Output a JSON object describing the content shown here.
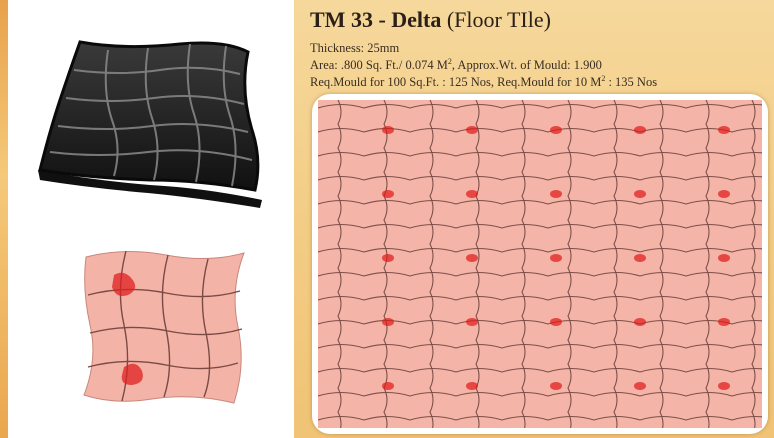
{
  "product": {
    "code": "TM 33 - Delta",
    "subtitle": "(Floor TIle)"
  },
  "specs": {
    "thickness": "Thickness: 25mm",
    "area_prefix": "Area: .800 Sq. Ft./ 0.074 M",
    "area_suffix": ", Approx.Wt. of Mould: 1.900",
    "req_prefix": "Req.Mould for 100 Sq.Ft. : 125 Nos, Req.Mould for 10 M",
    "req_suffix": " : 135 Nos",
    "superscript": "2"
  },
  "colors": {
    "background": "#f3cd86",
    "tile": "#f4b5a8",
    "mould": "#1e1e1e",
    "accent_red": "#e01818"
  },
  "icons": [
    "mould-image",
    "tile-sample-image",
    "tile-pattern-image"
  ]
}
